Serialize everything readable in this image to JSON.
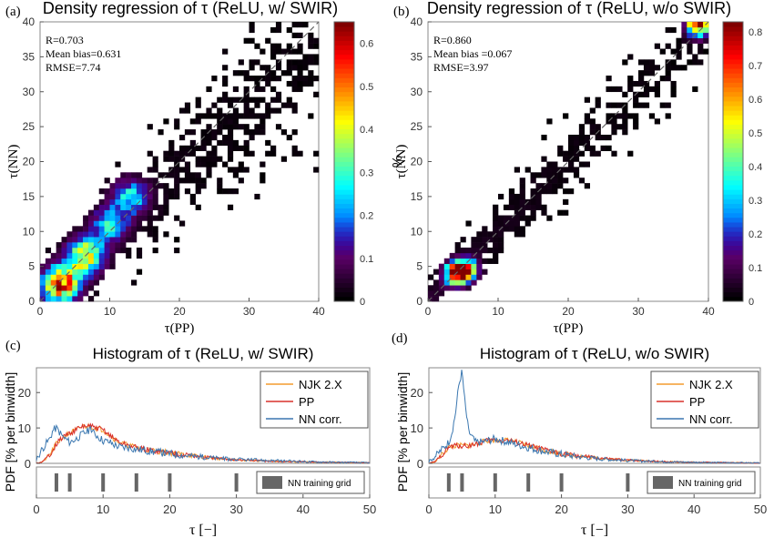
{
  "chart_data": [
    {
      "panel": "(a)",
      "type": "heatmap",
      "title": "Density regression of τ (ReLU, w/ SWIR)",
      "xlabel": "τ(PP)",
      "ylabel": "τ(NN)",
      "xlim": [
        0,
        40
      ],
      "ylim": [
        0,
        40
      ],
      "xticks": [
        0,
        10,
        20,
        30,
        40
      ],
      "yticks": [
        0,
        5,
        10,
        15,
        20,
        25,
        30,
        35,
        40
      ],
      "stats": [
        "R=0.703",
        "Mean bias=0.631",
        "RMSE=7.74"
      ],
      "colorbar": {
        "label": "%",
        "min": 0,
        "max": 0.65,
        "ticks": [
          0,
          0.1,
          0.2,
          0.3,
          0.4,
          0.5,
          0.6
        ]
      },
      "density": {
        "peaks": [
          [
            3,
            2.5,
            0.55
          ],
          [
            6.5,
            6.5,
            0.42
          ],
          [
            10,
            11,
            0.25
          ],
          [
            13,
            15,
            0.25
          ]
        ],
        "bias": 0.631,
        "spread": 7.74
      },
      "reference_line": "1:1 dashed"
    },
    {
      "panel": "(b)",
      "type": "heatmap",
      "title": "Density regression of τ (ReLU, w/o SWIR)",
      "xlabel": "τ(PP)",
      "ylabel": "τ(NN)",
      "xlim": [
        0,
        40
      ],
      "ylim": [
        0,
        40
      ],
      "xticks": [
        0,
        10,
        20,
        30,
        40
      ],
      "yticks": [
        0,
        5,
        10,
        15,
        20,
        25,
        30,
        35,
        40
      ],
      "stats": [
        "R=0.860",
        "Mean bias =0.067",
        "RMSE=3.97"
      ],
      "colorbar": {
        "label": "%",
        "min": 0,
        "max": 0.83,
        "ticks": [
          0,
          0.1,
          0.2,
          0.3,
          0.4,
          0.5,
          0.6,
          0.7,
          0.8
        ]
      },
      "density": {
        "peaks": [
          [
            4,
            4,
            0.82
          ],
          [
            5.5,
            4.5,
            0.6
          ],
          [
            38.5,
            39.5,
            0.8
          ]
        ],
        "bias": 0.067,
        "spread": 3.97
      },
      "reference_line": "1:1 dashed"
    },
    {
      "panel": "(c)",
      "type": "line",
      "title": "Histogram of τ (ReLU, w/ SWIR)",
      "xlabel": "τ [−]",
      "ylabel": "PDF [% per binwidth]",
      "xlim": [
        0,
        50
      ],
      "ylim": [
        0,
        27
      ],
      "xticks": [
        0,
        10,
        20,
        30,
        40,
        50
      ],
      "yticks": [
        0,
        10,
        20
      ],
      "legend": "top-right",
      "series": [
        {
          "name": "NJK 2.X",
          "color": "#f39c2e",
          "x": [
            0,
            1,
            2,
            3,
            4,
            5,
            6,
            7,
            8,
            9,
            10,
            11,
            12,
            13,
            14,
            15,
            16,
            18,
            20,
            22,
            25,
            28,
            30,
            35,
            40,
            45,
            50
          ],
          "y": [
            0,
            0.5,
            2.5,
            5.5,
            7.5,
            8.5,
            9.5,
            10.5,
            10.5,
            10,
            9.5,
            8,
            6.5,
            5.5,
            5,
            4.5,
            4,
            3.5,
            3,
            2.5,
            1.8,
            1.2,
            1,
            0.6,
            0.4,
            0.3,
            0.2
          ]
        },
        {
          "name": "PP",
          "color": "#d9302b",
          "x": [
            0,
            1,
            2,
            3,
            4,
            5,
            6,
            7,
            8,
            9,
            10,
            11,
            12,
            13,
            14,
            15,
            16,
            18,
            20,
            22,
            25,
            28,
            30,
            35,
            40,
            45,
            50
          ],
          "y": [
            0,
            0.5,
            2.5,
            5.5,
            7.5,
            8.5,
            9.5,
            10.5,
            10.5,
            10,
            9.5,
            8,
            6.5,
            5.5,
            5,
            4.5,
            4,
            3.5,
            3,
            2.5,
            1.8,
            1.2,
            1,
            0.6,
            0.4,
            0.3,
            0.2
          ]
        },
        {
          "name": "NN corr.",
          "color": "#3a77b0",
          "x": [
            0,
            0.5,
            1,
            2,
            2.5,
            3,
            4,
            5,
            6,
            7,
            8,
            9,
            10,
            11,
            12,
            13,
            14,
            15,
            16,
            18,
            20,
            22,
            25,
            28,
            30,
            35,
            40,
            45,
            50
          ],
          "y": [
            1,
            3,
            4.5,
            7,
            9.5,
            10,
            7.5,
            6,
            7,
            8.5,
            9.5,
            8,
            6.5,
            6,
            5,
            4.5,
            4.5,
            4,
            3.8,
            3.2,
            2.8,
            2.3,
            1.8,
            1.3,
            1.1,
            0.8,
            0.5,
            0.3,
            0.2
          ]
        }
      ],
      "training_grid": {
        "label": "NN training grid",
        "values": [
          3,
          5,
          10,
          15,
          20,
          30
        ]
      }
    },
    {
      "panel": "(d)",
      "type": "line",
      "title": "Histogram of τ (ReLU, w/o SWIR)",
      "xlabel": "τ [−]",
      "ylabel": "PDF [% per binwidth]",
      "xlim": [
        0,
        50
      ],
      "ylim": [
        0,
        27
      ],
      "xticks": [
        0,
        10,
        20,
        30,
        40,
        50
      ],
      "yticks": [
        0,
        10,
        20
      ],
      "legend": "top-right",
      "series": [
        {
          "name": "NJK 2.X",
          "color": "#f39c2e",
          "x": [
            0,
            1,
            2,
            3,
            4,
            5,
            6,
            7,
            8,
            9,
            10,
            11,
            12,
            13,
            14,
            15,
            16,
            18,
            20,
            22,
            25,
            28,
            30,
            35,
            40,
            45,
            50
          ],
          "y": [
            0,
            0.5,
            2.5,
            4.5,
            5,
            5,
            5,
            5.5,
            6,
            6.5,
            6.5,
            6.5,
            6.5,
            6,
            5.5,
            5,
            4.5,
            3.5,
            2.8,
            2.2,
            1.6,
            1.1,
            0.9,
            0.5,
            0.3,
            0.2,
            0.1
          ]
        },
        {
          "name": "PP",
          "color": "#d9302b",
          "x": [
            0,
            1,
            2,
            3,
            4,
            5,
            6,
            7,
            8,
            9,
            10,
            11,
            12,
            13,
            14,
            15,
            16,
            18,
            20,
            22,
            25,
            28,
            30,
            35,
            40,
            45,
            50
          ],
          "y": [
            0,
            0.5,
            2.5,
            4.5,
            5,
            5,
            5,
            5.5,
            6,
            6.5,
            6.5,
            6.5,
            6.5,
            6,
            5.5,
            5,
            4.5,
            3.5,
            2.8,
            2.2,
            1.6,
            1.1,
            0.9,
            0.5,
            0.3,
            0.2,
            0.1
          ]
        },
        {
          "name": "NN corr.",
          "color": "#3a77b0",
          "x": [
            0,
            1,
            2,
            3,
            3.5,
            4,
            4.5,
            5,
            5.5,
            6,
            7,
            8,
            9,
            10,
            11,
            12,
            13,
            14,
            15,
            16,
            18,
            20,
            22,
            25,
            28,
            30,
            35,
            40,
            45,
            50
          ],
          "y": [
            0.5,
            2,
            4,
            6,
            9,
            14,
            22,
            26,
            16,
            9,
            6,
            6,
            6.5,
            7,
            6.5,
            6,
            5.5,
            5,
            4.5,
            4,
            3.2,
            2.6,
            2,
            1.4,
            1,
            0.8,
            0.5,
            0.3,
            0.2,
            0.1
          ]
        }
      ],
      "training_grid": {
        "label": "NN training grid",
        "values": [
          3,
          5,
          10,
          15,
          20,
          30
        ]
      }
    }
  ]
}
